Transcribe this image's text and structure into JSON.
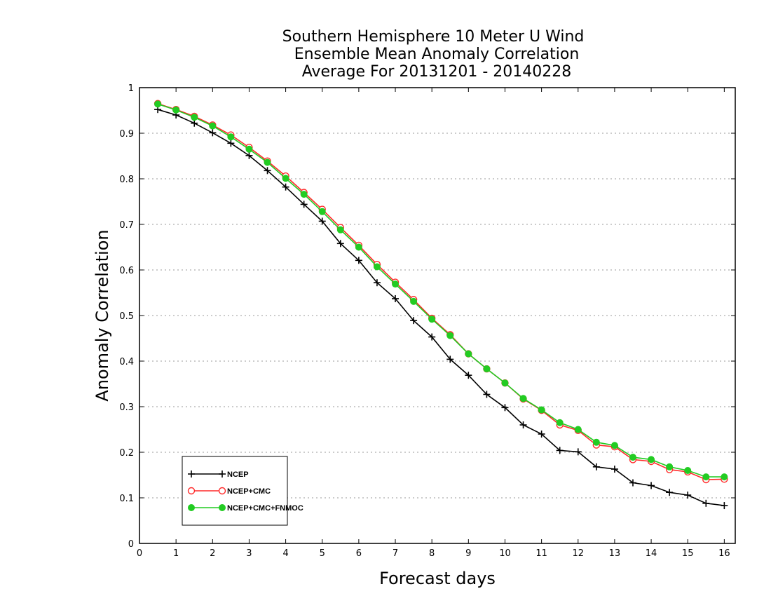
{
  "chart_data": {
    "type": "line",
    "title_lines": [
      "Southern Hemisphere 10 Meter U Wind",
      "Ensemble Mean Anomaly Correlation",
      "Average For 20131201 - 20140228"
    ],
    "xlabel": "Forecast days",
    "ylabel": "Anomaly Correlation",
    "xlim": [
      0,
      16.3
    ],
    "ylim": [
      0,
      1
    ],
    "xticks": [
      "0",
      "1",
      "2",
      "3",
      "4",
      "5",
      "6",
      "7",
      "8",
      "9",
      "10",
      "11",
      "12",
      "13",
      "14",
      "15",
      "16"
    ],
    "yticks": [
      "0",
      "0.1",
      "0.2",
      "0.3",
      "0.4",
      "0.5",
      "0.6",
      "0.7",
      "0.8",
      "0.9",
      "1"
    ],
    "grid": "horizontal dotted",
    "legend_position": "bottom-left",
    "x": [
      0.5,
      1,
      1.5,
      2,
      2.5,
      3,
      3.5,
      4,
      4.5,
      5,
      5.5,
      6,
      6.5,
      7,
      7.5,
      8,
      8.5,
      9,
      9.5,
      10,
      10.5,
      11,
      11.5,
      12,
      12.5,
      13,
      13.5,
      14,
      14.5,
      15,
      15.5,
      16
    ],
    "series": [
      {
        "name": "NCEP",
        "color": "#000000",
        "marker": "plus",
        "values": [
          0.952,
          0.94,
          0.922,
          0.901,
          0.878,
          0.851,
          0.818,
          0.782,
          0.744,
          0.707,
          0.658,
          0.621,
          0.572,
          0.537,
          0.489,
          0.453,
          0.404,
          0.369,
          0.327,
          0.298,
          0.26,
          0.24,
          0.204,
          0.201,
          0.168,
          0.163,
          0.133,
          0.127,
          0.112,
          0.106,
          0.088,
          0.083
        ]
      },
      {
        "name": "NCEP+CMC",
        "color": "#ff2a2a",
        "marker": "open-circle",
        "values": [
          0.965,
          0.952,
          0.937,
          0.918,
          0.896,
          0.869,
          0.839,
          0.806,
          0.77,
          0.733,
          0.693,
          0.654,
          0.612,
          0.573,
          0.535,
          0.494,
          0.458,
          0.416,
          0.383,
          0.352,
          0.317,
          0.292,
          0.26,
          0.248,
          0.216,
          0.212,
          0.184,
          0.18,
          0.162,
          0.157,
          0.14,
          0.141
        ]
      },
      {
        "name": "NCEP+CMC+FNMOC",
        "color": "#22cc22",
        "marker": "filled-circle",
        "values": [
          0.964,
          0.951,
          0.935,
          0.916,
          0.892,
          0.865,
          0.836,
          0.801,
          0.766,
          0.728,
          0.688,
          0.65,
          0.607,
          0.569,
          0.531,
          0.492,
          0.456,
          0.416,
          0.383,
          0.352,
          0.318,
          0.293,
          0.265,
          0.25,
          0.222,
          0.215,
          0.189,
          0.184,
          0.168,
          0.16,
          0.146,
          0.146
        ]
      }
    ]
  }
}
